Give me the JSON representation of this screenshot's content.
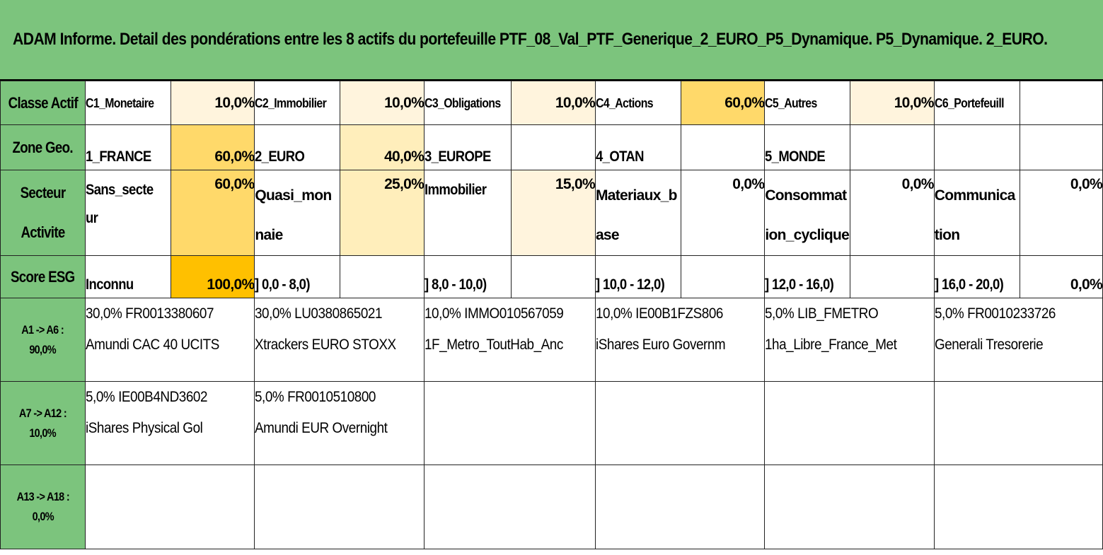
{
  "title": "ADAM Informe. Detail des pondérations entre les 8 actifs du portefeuille PTF_08_Val_PTF_Generique_2_EURO_P5_Dynamique. P5_Dynamique. 2_EURO.",
  "rows": {
    "classe": {
      "label": "Classe Actif",
      "cells": [
        {
          "name": "C1_Monetaire",
          "pct": "10,0%"
        },
        {
          "name": "C2_Immobilier",
          "pct": "10,0%"
        },
        {
          "name": "C3_Obligations",
          "pct": "10,0%"
        },
        {
          "name": "C4_Actions",
          "pct": "60,0%"
        },
        {
          "name": "C5_Autres",
          "pct": "10,0%"
        },
        {
          "name": "C6_Portefeuill",
          "pct": ""
        }
      ]
    },
    "zone": {
      "label": "Zone Geo.",
      "cells": [
        {
          "name": "1_FRANCE",
          "pct": "60,0%"
        },
        {
          "name": "2_EURO",
          "pct": "40,0%"
        },
        {
          "name": "3_EUROPE",
          "pct": ""
        },
        {
          "name": "4_OTAN",
          "pct": ""
        },
        {
          "name": "5_MONDE",
          "pct": ""
        },
        {
          "name": "",
          "pct": ""
        }
      ]
    },
    "secteur": {
      "label_line1": "Secteur",
      "label_line2": "Activite",
      "cells": [
        {
          "name": "Sans_secteur",
          "pct": "60,0%"
        },
        {
          "name": "Quasi_monnaie",
          "pct": "25,0%"
        },
        {
          "name": "Immobilier",
          "pct": "15,0%"
        },
        {
          "name": "Materiaux_base",
          "pct": "0,0%"
        },
        {
          "name": "Consommation_cyclique",
          "pct": "0,0%"
        },
        {
          "name": "Communication",
          "pct": "0,0%"
        }
      ]
    },
    "esg": {
      "label": "Score ESG",
      "cells": [
        {
          "name": "Inconnu",
          "pct": "100,0%"
        },
        {
          "name": "] 0,0 - 8,0)",
          "pct": ""
        },
        {
          "name": "] 8,0 - 10,0)",
          "pct": ""
        },
        {
          "name": "] 10,0 - 12,0)",
          "pct": ""
        },
        {
          "name": "] 12,0 - 16,0)",
          "pct": ""
        },
        {
          "name": "] 16,0 - 20,0)",
          "pct": "0,0%"
        }
      ]
    }
  },
  "asset_rows": [
    {
      "label_line1": "A1 -> A6 :",
      "label_line2": "90,0%",
      "assets": [
        {
          "line1": "30,0% FR0013380607",
          "line2": "Amundi CAC 40 UCITS"
        },
        {
          "line1": "30,0% LU0380865021",
          "line2": "Xtrackers EURO STOXX"
        },
        {
          "line1": "10,0% IMMO010567059",
          "line2": "1F_Metro_ToutHab_Anc"
        },
        {
          "line1": "10,0% IE00B1FZS806",
          "line2": "iShares Euro Governm"
        },
        {
          "line1": "5,0% LIB_FMETRO",
          "line2": "1ha_Libre_France_Met"
        },
        {
          "line1": "5,0% FR0010233726",
          "line2": "Generali Tresorerie"
        }
      ]
    },
    {
      "label_line1": "A7 -> A12 :",
      "label_line2": "10,0%",
      "assets": [
        {
          "line1": "5,0% IE00B4ND3602",
          "line2": "iShares Physical Gol"
        },
        {
          "line1": "5,0% FR0010510800",
          "line2": "Amundi EUR Overnight"
        },
        {
          "line1": "",
          "line2": ""
        },
        {
          "line1": "",
          "line2": ""
        },
        {
          "line1": "",
          "line2": ""
        },
        {
          "line1": "",
          "line2": ""
        }
      ]
    },
    {
      "label_line1": "A13 -> A18 :",
      "label_line2": "0,0%",
      "assets": [
        {
          "line1": "",
          "line2": ""
        },
        {
          "line1": "",
          "line2": ""
        },
        {
          "line1": "",
          "line2": ""
        },
        {
          "line1": "",
          "line2": ""
        },
        {
          "line1": "",
          "line2": ""
        },
        {
          "line1": "",
          "line2": ""
        }
      ]
    }
  ],
  "colors": {
    "header_green": "#7cc47d",
    "weight_pale": "#fff4dd",
    "weight_light": "#ffeebb",
    "weight_mid": "#ffd96a",
    "weight_strong": "#ffc000"
  }
}
